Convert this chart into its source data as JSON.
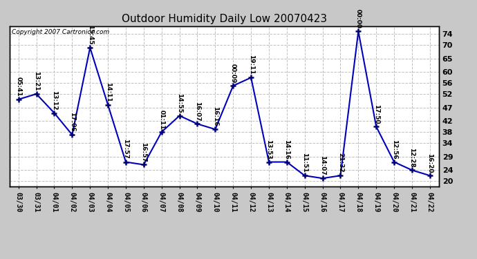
{
  "title": "Outdoor Humidity Daily Low 20070423",
  "copyright": "Copyright 2007 Cartronics.com",
  "background_color": "#c8c8c8",
  "plot_background": "#ffffff",
  "line_color": "#0000bb",
  "marker_color": "#000077",
  "grid_color": "#c0c0c0",
  "dates": [
    "03/30",
    "03/31",
    "04/01",
    "04/02",
    "04/03",
    "04/04",
    "04/05",
    "04/06",
    "04/07",
    "04/08",
    "04/09",
    "04/10",
    "04/11",
    "04/12",
    "04/13",
    "04/14",
    "04/15",
    "04/16",
    "04/17",
    "04/18",
    "04/19",
    "04/20",
    "04/21",
    "04/22"
  ],
  "values": [
    50,
    52,
    45,
    37,
    69,
    48,
    27,
    26,
    38,
    44,
    41,
    39,
    55,
    58,
    27,
    27,
    22,
    21,
    22,
    75,
    40,
    27,
    24,
    22
  ],
  "time_labels": [
    "05:41",
    "13:21",
    "13:12",
    "17:06",
    "15:45",
    "14:11",
    "17:57",
    "16:57",
    "01:11",
    "14:55",
    "16:07",
    "16:16",
    "00:09",
    "19:11",
    "13:53",
    "14:16",
    "11:51",
    "14:07",
    "21:32",
    "00:00",
    "17:50",
    "12:56",
    "12:28",
    "16:20"
  ],
  "ylim": [
    18,
    77
  ],
  "yticks": [
    20,
    24,
    29,
    34,
    38,
    42,
    47,
    52,
    56,
    60,
    65,
    70,
    74
  ],
  "title_fontsize": 11,
  "label_fontsize": 6.5,
  "copyright_fontsize": 6.5,
  "xtick_fontsize": 7,
  "ytick_fontsize": 8
}
